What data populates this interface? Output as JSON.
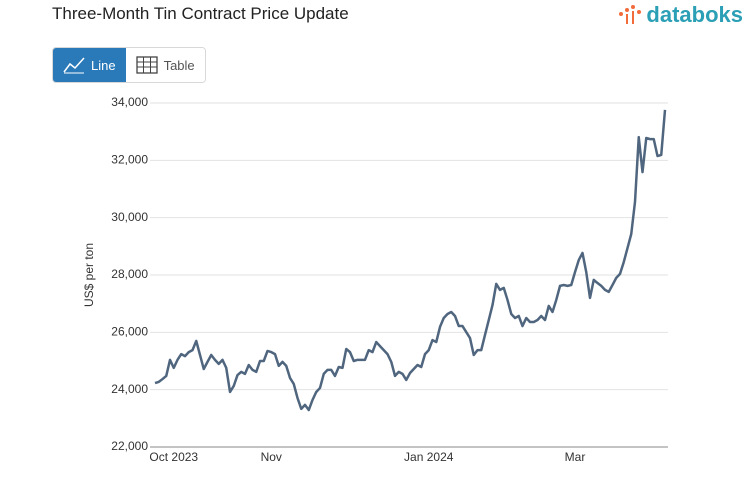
{
  "ui": {
    "buttons": [
      "Line",
      "Table"
    ],
    "logo": "databoks"
  },
  "chart_data": {
    "type": "line",
    "title": "Three-Month Tin Contract Price Update",
    "y_label": "US$ per ton",
    "categories": [
      null,
      null,
      null,
      null,
      null,
      "Oct 2023",
      null,
      null,
      null,
      null,
      null,
      null,
      null,
      null,
      null,
      null,
      null,
      null,
      null,
      null,
      null,
      null,
      null,
      null,
      null,
      null,
      null,
      null,
      null,
      null,
      null,
      "Nov",
      null,
      null,
      null,
      null,
      null,
      null,
      null,
      null,
      null,
      null,
      null,
      null,
      null,
      null,
      null,
      null,
      null,
      null,
      null,
      null,
      null,
      null,
      null,
      null,
      null,
      null,
      null,
      null,
      null,
      null,
      null,
      null,
      null,
      null,
      null,
      null,
      null,
      null,
      null,
      null,
      null,
      "Jan 2024",
      null,
      null,
      null,
      null,
      null,
      null,
      null,
      null,
      null,
      null,
      null,
      null,
      null,
      null,
      null,
      null,
      null,
      null,
      null,
      null,
      null,
      null,
      null,
      null,
      null,
      null,
      null,
      null,
      null,
      null,
      null,
      null,
      null,
      null,
      null,
      null,
      null,
      null,
      "Mar",
      null,
      null,
      null,
      null,
      null,
      null,
      null,
      null,
      null,
      null,
      null,
      null,
      null,
      null,
      null,
      null,
      null,
      null,
      null,
      null,
      null,
      null,
      null,
      null
    ],
    "series": [
      {
        "name": "US$ per ton",
        "color": "#50667f",
        "values": [
          24230,
          24270,
          24370,
          24480,
          25040,
          24760,
          25040,
          25240,
          25170,
          25310,
          25380,
          25700,
          25210,
          24720,
          24970,
          25210,
          25040,
          24900,
          25040,
          24760,
          23920,
          24130,
          24510,
          24620,
          24550,
          24860,
          24690,
          24620,
          25000,
          25000,
          25350,
          25310,
          25240,
          24830,
          24970,
          24830,
          24410,
          24200,
          23710,
          23330,
          23470,
          23290,
          23640,
          23920,
          24060,
          24550,
          24690,
          24690,
          24480,
          24790,
          24760,
          25420,
          25310,
          25000,
          25040,
          25040,
          25040,
          25380,
          25310,
          25660,
          25520,
          25380,
          25240,
          24970,
          24480,
          24620,
          24550,
          24340,
          24580,
          24720,
          24860,
          24790,
          25240,
          25380,
          25730,
          25660,
          26190,
          26500,
          26640,
          26710,
          26570,
          26220,
          26220,
          26010,
          25800,
          25210,
          25380,
          25380,
          25910,
          26430,
          26950,
          27690,
          27480,
          27550,
          27130,
          26640,
          26500,
          26570,
          26220,
          26500,
          26360,
          26360,
          26430,
          26570,
          26430,
          26920,
          26710,
          27130,
          27620,
          27650,
          27620,
          27650,
          28100,
          28520,
          28770,
          28100,
          27200,
          27830,
          27720,
          27620,
          27480,
          27410,
          27650,
          27900,
          28040,
          28450,
          28940,
          29430,
          30550,
          32810,
          31590,
          32780,
          32740,
          32740,
          32150,
          32190,
          33760
        ]
      }
    ],
    "ylim": [
      22000,
      34000
    ],
    "yticks": [
      {
        "value": 22000,
        "label": "22,000"
      },
      {
        "value": 24000,
        "label": "24,000"
      },
      {
        "value": 26000,
        "label": "26,000"
      },
      {
        "value": 28000,
        "label": "28,000"
      },
      {
        "value": 30000,
        "label": "30,000"
      },
      {
        "value": 32000,
        "label": "32,000"
      },
      {
        "value": 34000,
        "label": "34,000"
      }
    ],
    "grid": true
  }
}
